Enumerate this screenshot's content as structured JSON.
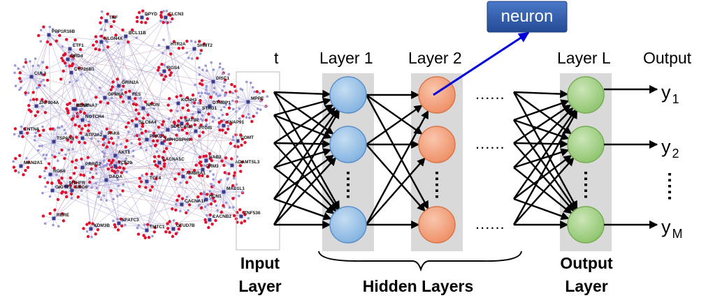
{
  "network_panel": {
    "hubs": [
      "PPP1R16B",
      "TNF",
      "DPYD",
      "CLCN3",
      "BCL11B",
      "NLGN4X",
      "ETF1",
      "DRD4",
      "HTR2A",
      "SHMT2",
      "CUL3",
      "CYP26B1",
      "RGS4",
      "GRIN2A",
      "GPM6A",
      "FES",
      "ZNF804A",
      "BDNF",
      "NOTCH4",
      "NRGN",
      "DISC1",
      "MPPE",
      "CNTN4",
      "TSPAN8",
      "ATP2A2",
      "PAK6",
      "AKT1",
      "CHRNA7",
      "PRKD1",
      "SLC6A4",
      "SDCCAG8",
      "SATB2",
      "MPHOSPH9",
      "STAG1",
      "PTGIS",
      "KCNH3",
      "DTNBP1",
      "SNAP91",
      "COMT",
      "MAN2A1",
      "RGS6",
      "PRRG2",
      "TCF20",
      "CACNA1C",
      "GRM3",
      "NAB2",
      "ADAMTSL3",
      "GIGYF2",
      "SMG6",
      "MTHFR",
      "DAOA",
      "TCF4",
      "AMBRA1",
      "MAD1L1",
      "RERE",
      "KDM3B",
      "NFATC3",
      "TMTC1",
      "OTUD7B",
      "CACNB2",
      "CACNA1I",
      "HCN1",
      "ZNF536"
    ]
  },
  "diagram": {
    "input_partial_label": "t",
    "layer1_label": "Layer 1",
    "layer2_label": "Layer 2",
    "layerL_label": "Layer L",
    "output_label": "Output",
    "dots": "......",
    "neuron_callout": "neuron",
    "input_layer_label": [
      "Input",
      "Layer"
    ],
    "hidden_layers_label": "Hidden Layers",
    "output_layer_label": [
      "Output",
      "Layer"
    ],
    "outputs": [
      {
        "base": "y",
        "sub": "1"
      },
      {
        "base": "y",
        "sub": "2"
      },
      {
        "base": "y",
        "sub": "M"
      }
    ],
    "colors": {
      "layer1_node": "#9dc3e6",
      "layer2_node": "#f4a582",
      "layerL_node": "#a9d18e",
      "column_bg": "#d9d9d9",
      "callout_bg": "#2f5597",
      "callout_arrow": "#0000dd"
    }
  }
}
